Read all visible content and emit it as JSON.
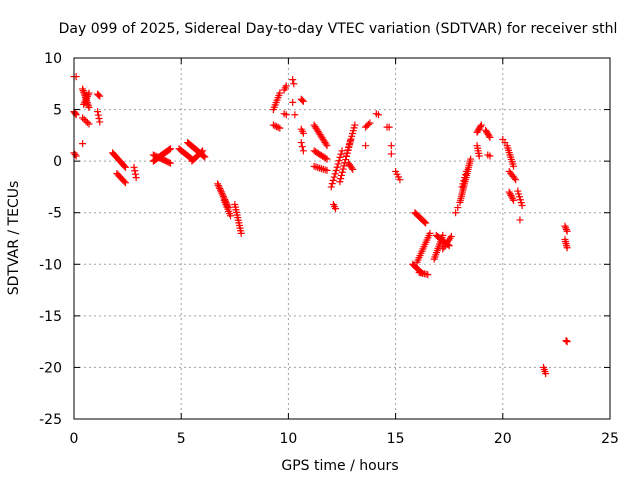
{
  "chart_data": {
    "type": "scatter",
    "title": "Day 099 of 2025, Sidereal Day-to-day VTEC variation (SDTVAR) for receiver sthl",
    "xlabel": "GPS time / hours",
    "ylabel": "SDTVAR / TECUs",
    "xlim": [
      0,
      25
    ],
    "ylim": [
      -25,
      10
    ],
    "xticks": [
      0,
      5,
      10,
      15,
      20,
      25
    ],
    "xtick_labels": [
      "0",
      "5",
      "10",
      "15",
      "20",
      "25"
    ],
    "yticks": [
      10,
      5,
      0,
      -5,
      -10,
      -15,
      -20,
      -25
    ],
    "ytick_labels": [
      "10",
      "5",
      "0",
      "-5",
      "-10",
      "-15",
      "-20",
      "-25"
    ],
    "grid": true,
    "marker": "+",
    "color": "#ff0000",
    "segments": [
      {
        "x0": 0.0,
        "x1": 0.1,
        "y0": 8.2,
        "y1": 8.2,
        "n": 2
      },
      {
        "x0": 0.0,
        "x1": 0.1,
        "y0": 4.8,
        "y1": 4.5,
        "n": 4
      },
      {
        "x0": 0.0,
        "x1": 0.1,
        "y0": 0.8,
        "y1": 0.5,
        "n": 3
      },
      {
        "x0": 0.4,
        "x1": 0.7,
        "y0": 7.0,
        "y1": 5.2,
        "n": 12
      },
      {
        "x0": 0.45,
        "x1": 0.7,
        "y0": 5.5,
        "y1": 6.6,
        "n": 8
      },
      {
        "x0": 0.4,
        "x1": 0.7,
        "y0": 4.2,
        "y1": 3.6,
        "n": 5
      },
      {
        "x0": 0.4,
        "x1": 0.4,
        "y0": 1.7,
        "y1": 1.7,
        "n": 1
      },
      {
        "x0": 1.1,
        "x1": 1.2,
        "y0": 6.5,
        "y1": 6.3,
        "n": 3
      },
      {
        "x0": 1.1,
        "x1": 1.2,
        "y0": 4.8,
        "y1": 3.8,
        "n": 4
      },
      {
        "x0": 1.8,
        "x1": 2.4,
        "y0": 0.8,
        "y1": -0.6,
        "n": 14
      },
      {
        "x0": 2.0,
        "x1": 2.4,
        "y0": -1.2,
        "y1": -2.1,
        "n": 8
      },
      {
        "x0": 2.8,
        "x1": 2.9,
        "y0": -0.6,
        "y1": -1.6,
        "n": 4
      },
      {
        "x0": 3.7,
        "x1": 4.5,
        "y0": 0.0,
        "y1": 1.2,
        "n": 20
      },
      {
        "x0": 3.7,
        "x1": 4.5,
        "y0": 0.6,
        "y1": -0.2,
        "n": 14
      },
      {
        "x0": 4.9,
        "x1": 5.5,
        "y0": 1.2,
        "y1": 0.2,
        "n": 12
      },
      {
        "x0": 5.3,
        "x1": 6.1,
        "y0": 1.8,
        "y1": 0.4,
        "n": 20
      },
      {
        "x0": 5.5,
        "x1": 6.0,
        "y0": 0.0,
        "y1": 1.0,
        "n": 10
      },
      {
        "x0": 6.7,
        "x1": 7.2,
        "y0": -2.2,
        "y1": -4.5,
        "n": 16
      },
      {
        "x0": 7.0,
        "x1": 7.3,
        "y0": -3.8,
        "y1": -5.3,
        "n": 8
      },
      {
        "x0": 7.5,
        "x1": 7.8,
        "y0": -4.2,
        "y1": -7.0,
        "n": 12
      },
      {
        "x0": 9.3,
        "x1": 9.6,
        "y0": 5.0,
        "y1": 6.6,
        "n": 8
      },
      {
        "x0": 9.3,
        "x1": 9.6,
        "y0": 3.5,
        "y1": 3.2,
        "n": 5
      },
      {
        "x0": 9.8,
        "x1": 9.9,
        "y0": 6.9,
        "y1": 7.3,
        "n": 3
      },
      {
        "x0": 9.8,
        "x1": 9.9,
        "y0": 4.6,
        "y1": 4.5,
        "n": 2
      },
      {
        "x0": 10.2,
        "x1": 10.25,
        "y0": 7.9,
        "y1": 7.5,
        "n": 2
      },
      {
        "x0": 10.2,
        "x1": 10.3,
        "y0": 5.7,
        "y1": 4.5,
        "n": 2
      },
      {
        "x0": 10.6,
        "x1": 10.7,
        "y0": 6.0,
        "y1": 5.8,
        "n": 3
      },
      {
        "x0": 10.6,
        "x1": 10.7,
        "y0": 3.1,
        "y1": 2.7,
        "n": 3
      },
      {
        "x0": 10.6,
        "x1": 10.7,
        "y0": 1.8,
        "y1": 1.0,
        "n": 3
      },
      {
        "x0": 11.2,
        "x1": 11.8,
        "y0": 3.5,
        "y1": 1.5,
        "n": 14
      },
      {
        "x0": 11.2,
        "x1": 11.8,
        "y0": 1.0,
        "y1": 0.2,
        "n": 10
      },
      {
        "x0": 11.2,
        "x1": 11.8,
        "y0": -0.5,
        "y1": -0.9,
        "n": 8
      },
      {
        "x0": 12.0,
        "x1": 12.5,
        "y0": -2.5,
        "y1": 1.0,
        "n": 12
      },
      {
        "x0": 12.1,
        "x1": 12.2,
        "y0": -4.2,
        "y1": -4.6,
        "n": 3
      },
      {
        "x0": 12.4,
        "x1": 12.9,
        "y0": -2.0,
        "y1": 2.0,
        "n": 14
      },
      {
        "x0": 12.7,
        "x1": 13.1,
        "y0": 0.5,
        "y1": 3.5,
        "n": 12
      },
      {
        "x0": 12.8,
        "x1": 13.0,
        "y0": -0.2,
        "y1": -0.8,
        "n": 5
      },
      {
        "x0": 13.6,
        "x1": 13.8,
        "y0": 3.3,
        "y1": 3.7,
        "n": 4
      },
      {
        "x0": 13.6,
        "x1": 13.7,
        "y0": 1.5,
        "y1": 1.5,
        "n": 1
      },
      {
        "x0": 14.1,
        "x1": 14.2,
        "y0": 4.6,
        "y1": 4.5,
        "n": 2
      },
      {
        "x0": 14.6,
        "x1": 14.7,
        "y0": 3.3,
        "y1": 3.3,
        "n": 2
      },
      {
        "x0": 14.8,
        "x1": 14.8,
        "y0": 1.5,
        "y1": 0.7,
        "n": 2
      },
      {
        "x0": 15.0,
        "x1": 15.2,
        "y0": -1.0,
        "y1": -1.8,
        "n": 4
      },
      {
        "x0": 15.9,
        "x1": 16.4,
        "y0": -5.0,
        "y1": -6.0,
        "n": 12
      },
      {
        "x0": 15.8,
        "x1": 16.2,
        "y0": -10.0,
        "y1": -10.8,
        "n": 10
      },
      {
        "x0": 16.1,
        "x1": 16.5,
        "y0": -10.8,
        "y1": -11.0,
        "n": 6
      },
      {
        "x0": 16.0,
        "x1": 16.6,
        "y0": -9.8,
        "y1": -7.0,
        "n": 14
      },
      {
        "x0": 16.8,
        "x1": 17.2,
        "y0": -9.5,
        "y1": -7.2,
        "n": 12
      },
      {
        "x0": 16.9,
        "x1": 17.5,
        "y0": -7.2,
        "y1": -8.2,
        "n": 12
      },
      {
        "x0": 17.2,
        "x1": 17.6,
        "y0": -8.5,
        "y1": -7.3,
        "n": 8
      },
      {
        "x0": 17.8,
        "x1": 17.9,
        "y0": -5.0,
        "y1": -4.5,
        "n": 2
      },
      {
        "x0": 18.0,
        "x1": 18.5,
        "y0": -4.0,
        "y1": 0.2,
        "n": 22
      },
      {
        "x0": 18.1,
        "x1": 18.3,
        "y0": -2.5,
        "y1": -1.0,
        "n": 6
      },
      {
        "x0": 18.8,
        "x1": 19.0,
        "y0": 2.8,
        "y1": 3.5,
        "n": 6
      },
      {
        "x0": 18.8,
        "x1": 18.9,
        "y0": 1.5,
        "y1": 0.5,
        "n": 5
      },
      {
        "x0": 19.2,
        "x1": 19.4,
        "y0": 3.0,
        "y1": 2.3,
        "n": 6
      },
      {
        "x0": 19.3,
        "x1": 19.4,
        "y0": 0.6,
        "y1": 0.5,
        "n": 2
      },
      {
        "x0": 20.0,
        "x1": 20.1,
        "y0": 2.1,
        "y1": 1.8,
        "n": 2
      },
      {
        "x0": 20.2,
        "x1": 20.5,
        "y0": 1.5,
        "y1": -0.5,
        "n": 10
      },
      {
        "x0": 20.3,
        "x1": 20.6,
        "y0": -1.0,
        "y1": -1.8,
        "n": 6
      },
      {
        "x0": 20.3,
        "x1": 20.5,
        "y0": -3.0,
        "y1": -3.8,
        "n": 6
      },
      {
        "x0": 20.7,
        "x1": 20.9,
        "y0": -2.9,
        "y1": -4.3,
        "n": 6
      },
      {
        "x0": 20.8,
        "x1": 20.8,
        "y0": -5.7,
        "y1": -5.7,
        "n": 1
      },
      {
        "x0": 21.9,
        "x1": 22.0,
        "y0": -20.0,
        "y1": -20.6,
        "n": 4
      },
      {
        "x0": 22.9,
        "x1": 23.0,
        "y0": -6.3,
        "y1": -6.8,
        "n": 4
      },
      {
        "x0": 22.9,
        "x1": 23.0,
        "y0": -7.6,
        "y1": -8.4,
        "n": 5
      },
      {
        "x0": 22.95,
        "x1": 23.0,
        "y0": -17.4,
        "y1": -17.5,
        "n": 3
      }
    ]
  }
}
